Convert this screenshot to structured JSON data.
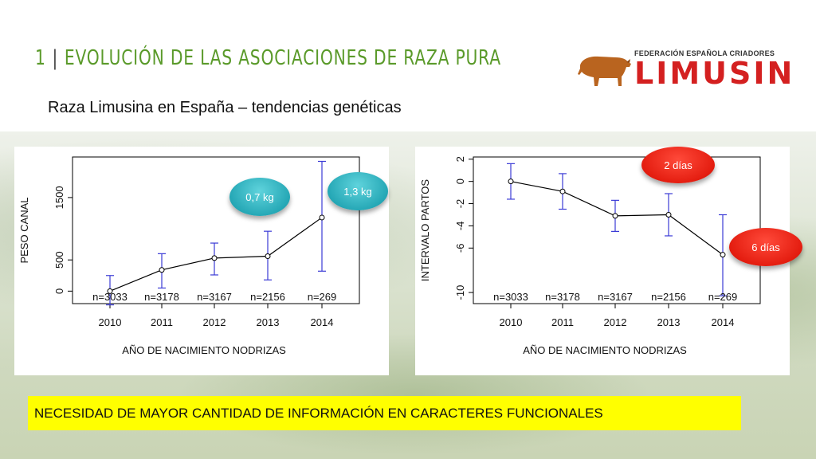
{
  "header": {
    "number": "1",
    "title": "EVOLUCIÓN DE LAS ASOCIACIONES DE RAZA PURA",
    "subtitle": "Raza Limusina en España – tendencias genéticas"
  },
  "logo": {
    "small_text": "FEDERACIÓN ESPAÑOLA CRIADORES",
    "big_text": "LIMUSIN",
    "color": "#d42020"
  },
  "callouts": {
    "kg_07": "0,7 kg",
    "kg_13": "1,3 kg",
    "dias_2": "2 días",
    "dias_6": "6 días"
  },
  "banner": {
    "text": "NECESIDAD DE MAYOR CANTIDAD DE INFORMACIÓN EN CARACTERES FUNCIONALES"
  },
  "colors": {
    "title": "#5a9a2a",
    "errorbar": "#3b3bd6",
    "banner_bg": "#ffff00"
  },
  "chart_data": [
    {
      "type": "line",
      "ylabel": "PESO CANAL",
      "xlabel": "AÑO DE NACIMIENTO NODRIZAS",
      "categories": [
        "2010",
        "2011",
        "2012",
        "2013",
        "2014"
      ],
      "values": [
        0,
        340,
        530,
        560,
        1180
      ],
      "err_low": [
        -220,
        50,
        260,
        180,
        320
      ],
      "err_high": [
        250,
        600,
        770,
        960,
        2080
      ],
      "n_labels": [
        "n=3033",
        "n=3178",
        "n=3167",
        "n=2156",
        "n=269"
      ],
      "ylim": [
        -200,
        2150
      ],
      "yticks": [
        0,
        500,
        1500
      ],
      "ytick_labels": [
        "0",
        "500",
        "1500"
      ]
    },
    {
      "type": "line",
      "ylabel": "INTERVALO PARTOS",
      "xlabel": "AÑO DE NACIMIENTO NODRIZAS",
      "categories": [
        "2010",
        "2011",
        "2012",
        "2013",
        "2014"
      ],
      "values": [
        0,
        -0.9,
        -3.1,
        -3.0,
        -6.6
      ],
      "err_low": [
        -1.6,
        -2.5,
        -4.5,
        -4.9,
        -10.3
      ],
      "err_high": [
        1.6,
        0.7,
        -1.7,
        -1.1,
        -3.0
      ],
      "n_labels": [
        "n=3033",
        "n=3178",
        "n=3167",
        "n=2156",
        "n=269"
      ],
      "ylim": [
        -11,
        2.2
      ],
      "yticks": [
        2,
        0,
        -2,
        -4,
        -6,
        -10
      ],
      "ytick_labels": [
        "2",
        "0",
        "-2",
        "-4",
        "-6",
        "-10"
      ]
    }
  ]
}
